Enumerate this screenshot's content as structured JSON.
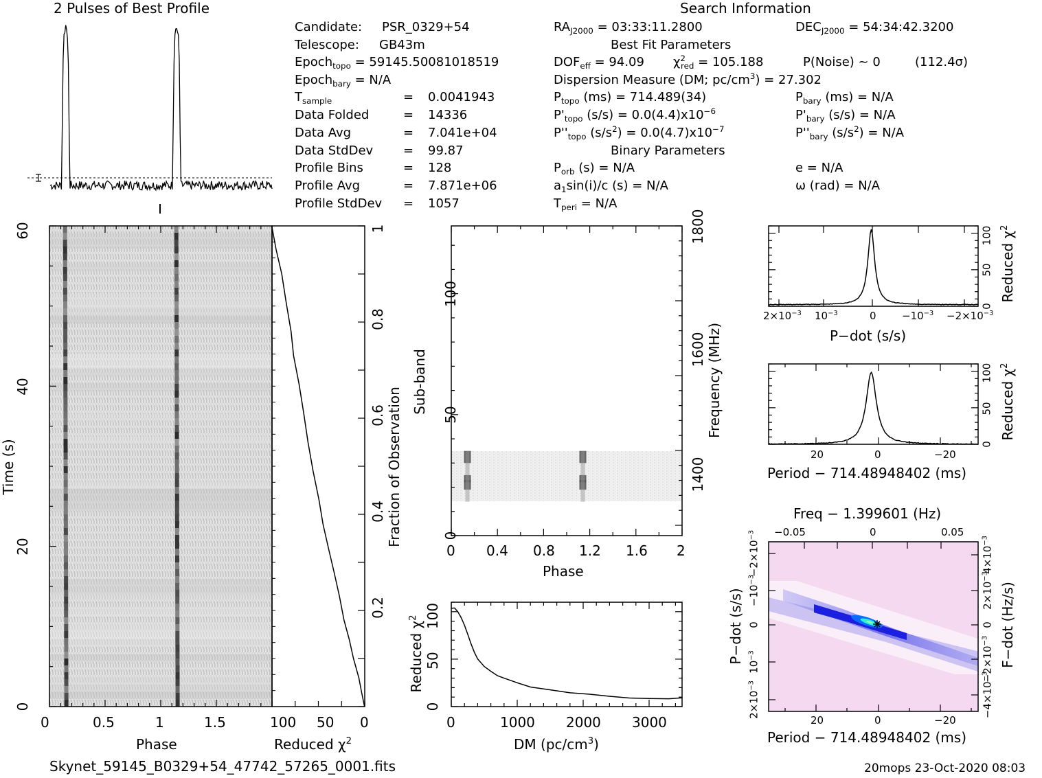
{
  "profile": {
    "title": "2 Pulses of Best Profile"
  },
  "info": {
    "search_title": "Search Information",
    "candidate_label": "Candidate:",
    "candidate_value": "PSR_0329+54",
    "telescope_label": "Telescope:",
    "telescope_value": "GB43m",
    "epoch_topo_label": "Epoch",
    "epoch_topo_sub": "topo",
    "epoch_topo_value": "= 59145.50081018519",
    "epoch_bary_label": "Epoch",
    "epoch_bary_sub": "bary",
    "epoch_bary_value": "= N/A",
    "tsample_label": "T",
    "tsample_sub": "sample",
    "tsample_value": "0.0041943",
    "data_folded_label": "Data Folded",
    "data_folded_value": "14336",
    "data_avg_label": "Data Avg",
    "data_avg_value": "7.041e+04",
    "data_std_label": "Data StdDev",
    "data_std_value": "99.87",
    "profile_bins_label": "Profile Bins",
    "profile_bins_value": "128",
    "profile_avg_label": "Profile Avg",
    "profile_avg_value": "7.871e+06",
    "profile_std_label": "Profile StdDev",
    "profile_std_value": "1057",
    "eq": "=",
    "ra_label": "RA",
    "ra_sub": "J2000",
    "ra_value": "= 03:33:11.2800",
    "dec_label": "DEC",
    "dec_sub": "J2000",
    "dec_value": "= 54:34:42.3200",
    "best_fit_title": "Best Fit Parameters",
    "dof_label": "DOF",
    "dof_sub": "eff",
    "dof_value": "= 94.09",
    "chi_label": "χ",
    "chi_sup": "2",
    "chi_sub": "red",
    "chi_value": "= 105.188",
    "pnoise": "P(Noise) ~ 0",
    "sigma": "(112.4σ)",
    "dm_line_a": "Dispersion Measure (DM; pc/cm",
    "dm_line_sup": "3",
    "dm_line_b": ") = 27.302",
    "ptopo_label": "P",
    "ptopo_sub": "topo",
    "ptopo_value": "(ms) =  714.489(34)",
    "pbary_label": "P",
    "pbary_sub": "bary",
    "pbary_value": "(ms) = N/A",
    "pdtopo_label": "P'",
    "pdtopo_sub": "topo",
    "pdtopo_value": "(s/s) = 0.0(4.4)x10",
    "pdtopo_exp": "−6",
    "pdbary_label": "P'",
    "pdbary_sub": "bary",
    "pdbary_value": "(s/s) = N/A",
    "pddtopo_label": "P''",
    "pddtopo_sub": "topo",
    "pddtopo_value_a": "(s/s",
    "pddtopo_value_sup": "2",
    "pddtopo_value_b": ") = 0.0(4.7)x10",
    "pddtopo_exp": "−7",
    "pddbary_label": "P''",
    "pddbary_sub": "bary",
    "pddbary_value_a": "(s/s",
    "pddbary_value_sup": "2",
    "pddbary_value_b": ") = N/A",
    "binary_title": "Binary Parameters",
    "porb_label": "P",
    "porb_sub": "orb",
    "porb_value": "(s) = N/A",
    "ecc": "e = N/A",
    "a1_label": "a",
    "a1_sub": "1",
    "a1_value": "sin(i)/c (s) = N/A",
    "omega": "ω (rad) = N/A",
    "tperi_label": "T",
    "tperi_sub": "peri",
    "tperi_value": "= N/A"
  },
  "footer": {
    "filename": "Skynet_59145_B0329+54_47742_57265_0001.fits",
    "stamp": "20mops 23-Oct-2020 08:03"
  },
  "colors": {
    "ink": "#000000",
    "grey": "#d6d6d6",
    "ppdot_bg": "#f4d9f0",
    "ppdot_blue": "#1a1fe0",
    "ppdot_cyan": "#2ef0d8"
  },
  "chart_data": [
    {
      "id": "profile",
      "type": "line",
      "title": "2 Pulses of Best Profile",
      "x_range": [
        0,
        2
      ],
      "peaks": [
        0.14,
        1.14
      ],
      "baseline": 0.0,
      "peak_height": 1.0
    },
    {
      "id": "time-phase",
      "type": "heatmap",
      "xlabel": "Phase",
      "ylabel": "Time (s)",
      "xlim": [
        0,
        2
      ],
      "ylim": [
        0,
        60
      ],
      "x_ticks": [
        "0",
        "0.5",
        "1",
        "1.5"
      ],
      "y_ticks": [
        "0",
        "20",
        "40",
        "60"
      ]
    },
    {
      "id": "time-chi2",
      "type": "line",
      "xlabel": "Reduced χ2",
      "ylabel": "Fraction of Observation",
      "xlim": [
        100,
        0
      ],
      "ylim": [
        0,
        1
      ],
      "x_ticks": [
        "100",
        "50",
        "0"
      ],
      "y_ticks": [
        "0.2",
        "0.4",
        "0.6",
        "0.8",
        "1"
      ],
      "points": [
        [
          0,
          0
        ],
        [
          3,
          0.03
        ],
        [
          7,
          0.06
        ],
        [
          12,
          0.1
        ],
        [
          17,
          0.14
        ],
        [
          22,
          0.18
        ],
        [
          28,
          0.23
        ],
        [
          33,
          0.28
        ],
        [
          39,
          0.33
        ],
        [
          45,
          0.38
        ],
        [
          50,
          0.43
        ],
        [
          56,
          0.49
        ],
        [
          61,
          0.55
        ],
        [
          66,
          0.61
        ],
        [
          71,
          0.67
        ],
        [
          76,
          0.73
        ],
        [
          80,
          0.78
        ],
        [
          85,
          0.84
        ],
        [
          90,
          0.9
        ],
        [
          95,
          0.95
        ],
        [
          97,
          0.97
        ],
        [
          100,
          1.0
        ]
      ]
    },
    {
      "id": "subband-phase",
      "type": "heatmap",
      "xlabel": "Phase",
      "ylabel": "Sub-band",
      "y2label": "Frequency (MHz)",
      "xlim": [
        0,
        2
      ],
      "ylim": [
        0,
        128
      ],
      "x_ticks": [
        "0",
        "0.4",
        "0.8",
        "1.2",
        "1.6",
        "2"
      ],
      "y_ticks": [
        "0",
        "50",
        "100"
      ],
      "y2_ticks": [
        "1400",
        "1600",
        "1800"
      ],
      "filled_subbands": [
        14,
        35
      ]
    },
    {
      "id": "dm-chi2",
      "type": "line",
      "xlabel": "DM (pc/cm3)",
      "ylabel": "Reduced χ2",
      "xlim": [
        0,
        3500
      ],
      "ylim": [
        0,
        110
      ],
      "x_ticks": [
        "0",
        "1000",
        "2000",
        "3000"
      ],
      "y_ticks": [
        "0",
        "50",
        "100"
      ],
      "points": [
        [
          0,
          104
        ],
        [
          50,
          104
        ],
        [
          100,
          100
        ],
        [
          150,
          94
        ],
        [
          200,
          86
        ],
        [
          250,
          76
        ],
        [
          300,
          66
        ],
        [
          350,
          57
        ],
        [
          400,
          50
        ],
        [
          500,
          42
        ],
        [
          600,
          37
        ],
        [
          700,
          33
        ],
        [
          800,
          30
        ],
        [
          1000,
          25
        ],
        [
          1200,
          21
        ],
        [
          1500,
          18
        ],
        [
          1800,
          15
        ],
        [
          2100,
          13
        ],
        [
          2400,
          11
        ],
        [
          2700,
          9
        ],
        [
          3000,
          8
        ],
        [
          3300,
          8
        ],
        [
          3500,
          9
        ]
      ]
    },
    {
      "id": "pdot-chi2",
      "type": "line",
      "xlabel": "P−dot (s/s)",
      "ylabel": "Reduced χ2",
      "ylim": [
        0,
        110
      ],
      "x_ticks": [
        "2×10−3",
        "10−3",
        "0",
        "−10−3",
        "−2×10−3"
      ],
      "y_ticks": [
        "0",
        "50",
        "100"
      ]
    },
    {
      "id": "period-chi2",
      "type": "line",
      "xlabel": "Period − 714.48948402 (ms)",
      "ylabel": "Reduced χ2",
      "ylim": [
        0,
        110
      ],
      "x_ticks": [
        "20",
        "0",
        "−20"
      ],
      "y_ticks": [
        "0",
        "50",
        "100"
      ]
    },
    {
      "id": "ppdot",
      "type": "heatmap",
      "xlabel": "Period − 714.48948402 (ms)",
      "ylabel": "P−dot (s/s)",
      "top_label": "Freq − 1.399601 (Hz)",
      "right_label": "F−dot (Hz/s)",
      "x_ticks": [
        "20",
        "0",
        "−20"
      ],
      "top_ticks": [
        "−0.05",
        "0",
        "0.05"
      ],
      "y_ticks": [
        "2×10−3",
        "10−3",
        "0",
        "−10−3",
        "−2×10−3"
      ],
      "right_ticks": [
        "−4×10−3",
        "−2×10−3",
        "0",
        "2×10−3",
        "4×10−3"
      ]
    }
  ]
}
